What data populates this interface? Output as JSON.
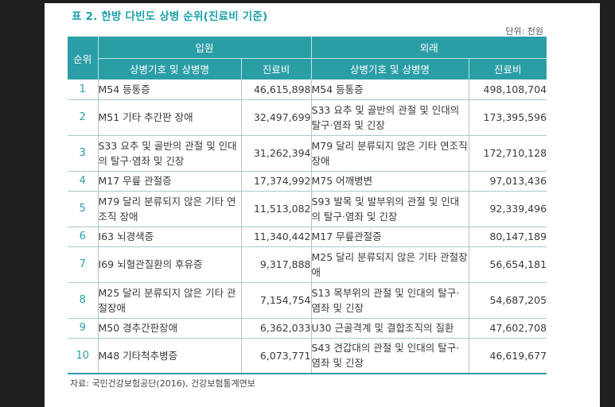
{
  "caption": "표 2. 한방 다빈도 상병 순위(진료비 기준)",
  "unit": "단위: 천원",
  "headers": {
    "rank": "순위",
    "inpatient": "입원",
    "outpatient": "외래",
    "disease": "상병기호 및 상병명",
    "cost": "진료비"
  },
  "rows": [
    {
      "rank": "1",
      "in_name": "M54 등통증",
      "in_cost": "46,615,898",
      "out_name": "M54 등통증",
      "out_cost": "498,108,704"
    },
    {
      "rank": "2",
      "in_name": "M51 기타 추간판 장애",
      "in_cost": "32,497,699",
      "out_name": "S33 요추 및 골반의 관절 및 인대의 탈구·염좌 및 긴장",
      "out_cost": "173,395,596"
    },
    {
      "rank": "3",
      "in_name": "S33 요추 및 골반의 관절 및 인대의 탈구·염좌 및 긴장",
      "in_cost": "31,262,394",
      "out_name": "M79 달리 분류되지 않은 기타 연조직 장애",
      "out_cost": "172,710,128"
    },
    {
      "rank": "4",
      "in_name": "M17 무릎 관절증",
      "in_cost": "17,374,992",
      "out_name": "M75 어깨병변",
      "out_cost": "97,013,436"
    },
    {
      "rank": "5",
      "in_name": "M79 달리 분류되지 않은 기타 연조직 장애",
      "in_cost": "11,513,082",
      "out_name": "S93 발목 및 발부위의 관절 및 인대의 탈구·염좌 및 긴장",
      "out_cost": "92,339,496"
    },
    {
      "rank": "6",
      "in_name": "I63 뇌경색증",
      "in_cost": "11,340,442",
      "out_name": "M17 무릎관절증",
      "out_cost": "80,147,189"
    },
    {
      "rank": "7",
      "in_name": "I69 뇌혈관질환의 후유증",
      "in_cost": "9,317,888",
      "out_name": "M25 달리 분류되지 않은 기타 관절장애",
      "out_cost": "56,654,181"
    },
    {
      "rank": "8",
      "in_name": "M25 달리 분류되지 않은 기타 관절장애",
      "in_cost": "7,154,754",
      "out_name": "S13 목부위의 관절 및 인대의 탈구·염좌 및 긴장",
      "out_cost": "54,687,205"
    },
    {
      "rank": "9",
      "in_name": "M50 경추간판장애",
      "in_cost": "6,362,033",
      "out_name": "U30 근골격계 및 결합조직의 질환",
      "out_cost": "47,602,708"
    },
    {
      "rank": "10",
      "in_name": "M48 기타척추병증",
      "in_cost": "6,073,771",
      "out_name": "S43 견갑대의 관절 및 인대의 탈구·염좌 및 긴장",
      "out_cost": "46,619,677"
    }
  ],
  "source": "자료: 국민건강보험공단(2016), 건강보험통계연보",
  "colors": {
    "accent": "#2a9ea6",
    "caption": "#1aa1a9"
  }
}
